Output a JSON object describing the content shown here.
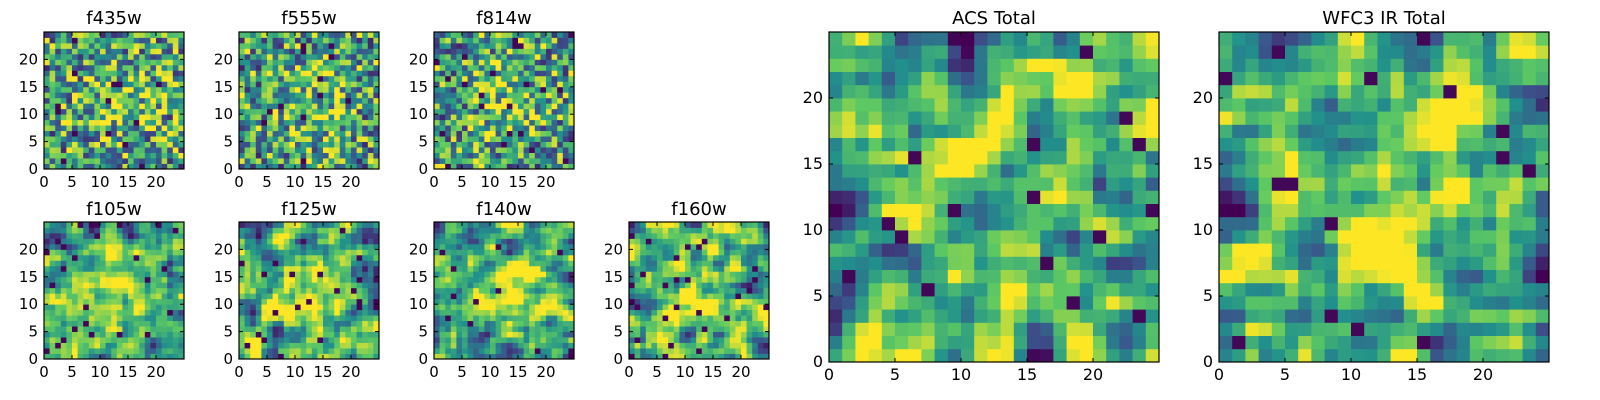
{
  "colormap": [
    "#440154",
    "#3b528b",
    "#21918c",
    "#5ec962",
    "#fde725"
  ],
  "chart_data": [
    {
      "type": "heatmap",
      "title": "f435w",
      "xticks": [
        0,
        5,
        10,
        15,
        20
      ],
      "yticks": [
        0,
        5,
        10,
        15,
        20
      ],
      "xlim": [
        0,
        25
      ],
      "ylim": [
        0,
        25
      ]
    },
    {
      "type": "heatmap",
      "title": "f555w",
      "xticks": [
        0,
        5,
        10,
        15,
        20
      ],
      "yticks": [
        0,
        5,
        10,
        15,
        20
      ],
      "xlim": [
        0,
        25
      ],
      "ylim": [
        0,
        25
      ]
    },
    {
      "type": "heatmap",
      "title": "f814w",
      "xticks": [
        0,
        5,
        10,
        15,
        20
      ],
      "yticks": [
        0,
        5,
        10,
        15,
        20
      ],
      "xlim": [
        0,
        25
      ],
      "ylim": [
        0,
        25
      ]
    },
    {
      "type": "heatmap",
      "title": "f105w",
      "xticks": [
        0,
        5,
        10,
        15,
        20
      ],
      "yticks": [
        0,
        5,
        10,
        15,
        20
      ],
      "xlim": [
        0,
        25
      ],
      "ylim": [
        0,
        25
      ]
    },
    {
      "type": "heatmap",
      "title": "f125w",
      "xticks": [
        0,
        5,
        10,
        15,
        20
      ],
      "yticks": [
        0,
        5,
        10,
        15,
        20
      ],
      "xlim": [
        0,
        25
      ],
      "ylim": [
        0,
        25
      ]
    },
    {
      "type": "heatmap",
      "title": "f140w",
      "xticks": [
        0,
        5,
        10,
        15,
        20
      ],
      "yticks": [
        0,
        5,
        10,
        15,
        20
      ],
      "xlim": [
        0,
        25
      ],
      "ylim": [
        0,
        25
      ]
    },
    {
      "type": "heatmap",
      "title": "f160w",
      "xticks": [
        0,
        5,
        10,
        15,
        20
      ],
      "yticks": [
        0,
        5,
        10,
        15,
        20
      ],
      "xlim": [
        0,
        25
      ],
      "ylim": [
        0,
        25
      ]
    },
    {
      "type": "heatmap",
      "title": "ACS Total",
      "xticks": [
        0,
        5,
        10,
        15,
        20
      ],
      "yticks": [
        0,
        5,
        10,
        15,
        20
      ],
      "xlim": [
        0,
        25
      ],
      "ylim": [
        0,
        25
      ]
    },
    {
      "type": "heatmap",
      "title": "WFC3 IR Total",
      "xticks": [
        0,
        5,
        10,
        15,
        20
      ],
      "yticks": [
        0,
        5,
        10,
        15,
        20
      ],
      "xlim": [
        0,
        25
      ],
      "ylim": [
        0,
        25
      ]
    }
  ]
}
